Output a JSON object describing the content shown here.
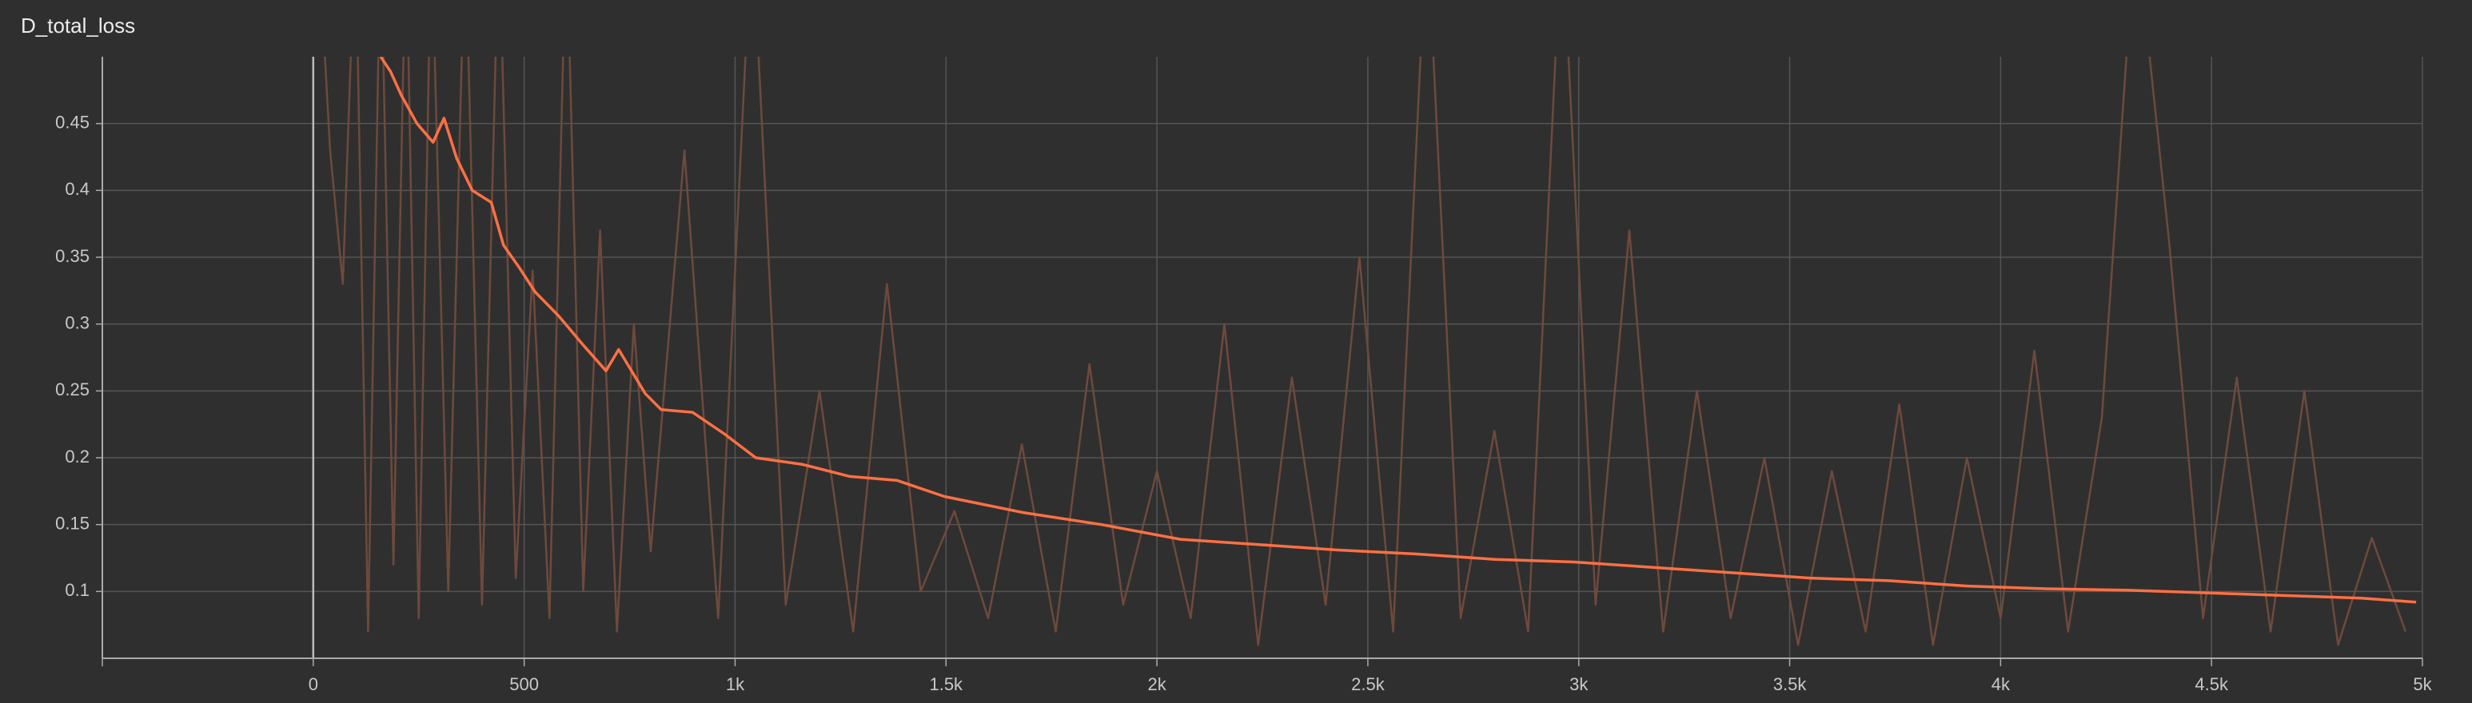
{
  "chart_data": {
    "type": "line",
    "title": "D_total_loss",
    "xlim": [
      -500,
      5000
    ],
    "xticks": [
      0,
      500,
      {
        "value": 1000,
        "label": "1k"
      },
      {
        "value": 1500,
        "label": "1.5k"
      },
      {
        "value": 2000,
        "label": "2k"
      },
      {
        "value": 2500,
        "label": "2.5k"
      },
      {
        "value": 3000,
        "label": "3k"
      },
      {
        "value": 3500,
        "label": "3.5k"
      },
      {
        "value": 4000,
        "label": "4k"
      },
      {
        "value": 4500,
        "label": "4.5k"
      },
      {
        "value": 5000,
        "label": "5k"
      }
    ],
    "ylim": [
      0.05,
      0.5
    ],
    "yticks": [
      0.1,
      0.15,
      0.2,
      0.25,
      0.3,
      0.35,
      0.4,
      0.45
    ],
    "grid": true,
    "series": [
      {
        "color": "#6e4a3c",
        "x": [
          10,
          40,
          70,
          100,
          130,
          160,
          190,
          220,
          250,
          280,
          320,
          360,
          400,
          440,
          480,
          520,
          560,
          600,
          640,
          680,
          720,
          760,
          800,
          880,
          960,
          1040,
          1120,
          1200,
          1280,
          1360,
          1440,
          1520,
          1600,
          1680,
          1760,
          1840,
          1920,
          2000,
          2080,
          2160,
          2240,
          2320,
          2400,
          2480,
          2560,
          2640,
          2720,
          2800,
          2880,
          2960,
          3040,
          3120,
          3200,
          3280,
          3360,
          3440,
          3520,
          3600,
          3680,
          3760,
          3840,
          3920,
          4000,
          4080,
          4160,
          4240,
          4320,
          4400,
          4480,
          4560,
          4640,
          4720,
          4800,
          4880,
          4960
        ],
        "values": [
          0.6,
          0.43,
          0.33,
          0.6,
          0.07,
          0.6,
          0.12,
          0.6,
          0.08,
          0.6,
          0.1,
          0.6,
          0.09,
          0.6,
          0.11,
          0.34,
          0.08,
          0.6,
          0.1,
          0.37,
          0.07,
          0.3,
          0.13,
          0.43,
          0.08,
          0.6,
          0.09,
          0.25,
          0.07,
          0.33,
          0.1,
          0.16,
          0.08,
          0.21,
          0.07,
          0.27,
          0.09,
          0.19,
          0.08,
          0.3,
          0.06,
          0.26,
          0.09,
          0.35,
          0.07,
          0.6,
          0.08,
          0.22,
          0.07,
          0.6,
          0.09,
          0.37,
          0.07,
          0.25,
          0.08,
          0.2,
          0.06,
          0.19,
          0.07,
          0.24,
          0.06,
          0.2,
          0.08,
          0.28,
          0.07,
          0.23,
          0.6,
          0.36,
          0.08,
          0.26,
          0.07,
          0.25,
          0.06,
          0.14,
          0.07
        ]
      },
      {
        "color": "#ff7043",
        "x": [
          160,
          183,
          209,
          246,
          284,
          310,
          340,
          377,
          422,
          451,
          489,
          526,
          582,
          638,
          694,
          724,
          787,
          825,
          899,
          974,
          1049,
          1160,
          1272,
          1384,
          1496,
          1683,
          1869,
          2056,
          2243,
          2429,
          2616,
          2802,
          2989,
          3175,
          3362,
          3549,
          3735,
          3922,
          4108,
          4295,
          4482,
          4668,
          4855,
          4985
        ],
        "values": [
          0.5,
          0.489,
          0.471,
          0.45,
          0.436,
          0.454,
          0.424,
          0.4,
          0.391,
          0.359,
          0.342,
          0.324,
          0.306,
          0.285,
          0.265,
          0.281,
          0.248,
          0.236,
          0.234,
          0.218,
          0.2,
          0.195,
          0.186,
          0.183,
          0.171,
          0.159,
          0.15,
          0.139,
          0.135,
          0.131,
          0.128,
          0.124,
          0.122,
          0.118,
          0.114,
          0.11,
          0.108,
          0.104,
          0.102,
          0.101,
          0.099,
          0.097,
          0.095,
          0.092
        ]
      }
    ]
  }
}
